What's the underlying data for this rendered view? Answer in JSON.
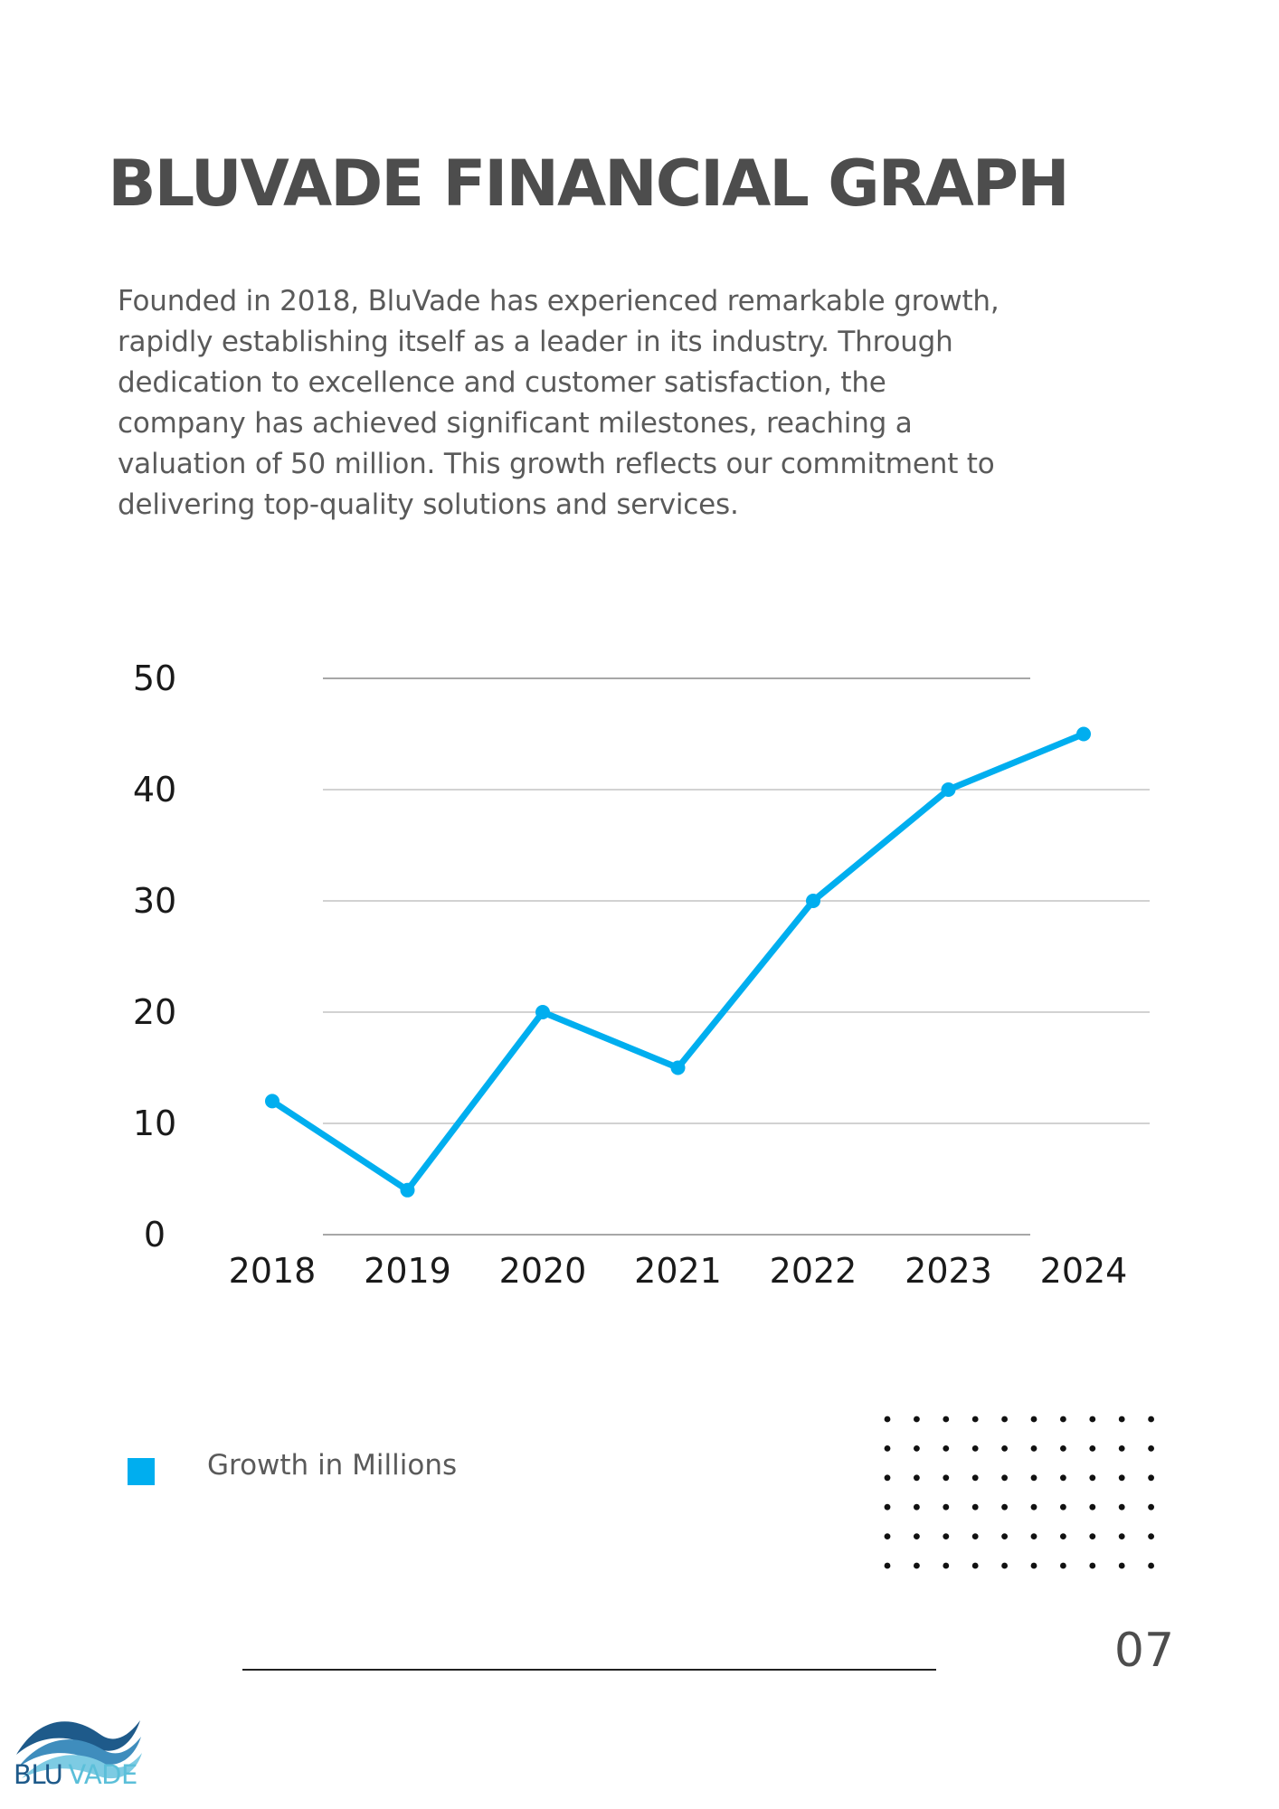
{
  "title": "BLUVADE FINANCIAL GRAPH",
  "intro_lines": [
    "Founded in 2018, BluVade has experienced remarkable growth,",
    "rapidly establishing itself as a leader in its industry. Through",
    "dedication to excellence and customer satisfaction, the",
    "company has achieved significant milestones, reaching a",
    "valuation of 50 million. This growth reflects our commitment to",
    "delivering top-quality solutions and services."
  ],
  "chart_data": {
    "type": "line",
    "title": "",
    "xlabel": "",
    "ylabel": "",
    "categories": [
      "2018",
      "2019",
      "2020",
      "2021",
      "2022",
      "2023",
      "2024"
    ],
    "series": [
      {
        "name": "Growth in Millions",
        "values": [
          12,
          4,
          20,
          15,
          30,
          40,
          45
        ],
        "color": "#00aeef"
      }
    ],
    "ylim": [
      0,
      50
    ],
    "yticks": [
      0,
      10,
      20,
      30,
      40,
      50
    ],
    "grid": true,
    "legend": "bottom-left"
  },
  "legend": {
    "label": "Growth in Millions",
    "color": "#00aeef"
  },
  "page_number": "07",
  "logo": {
    "blu": "BLU",
    "vade": "VADE"
  }
}
